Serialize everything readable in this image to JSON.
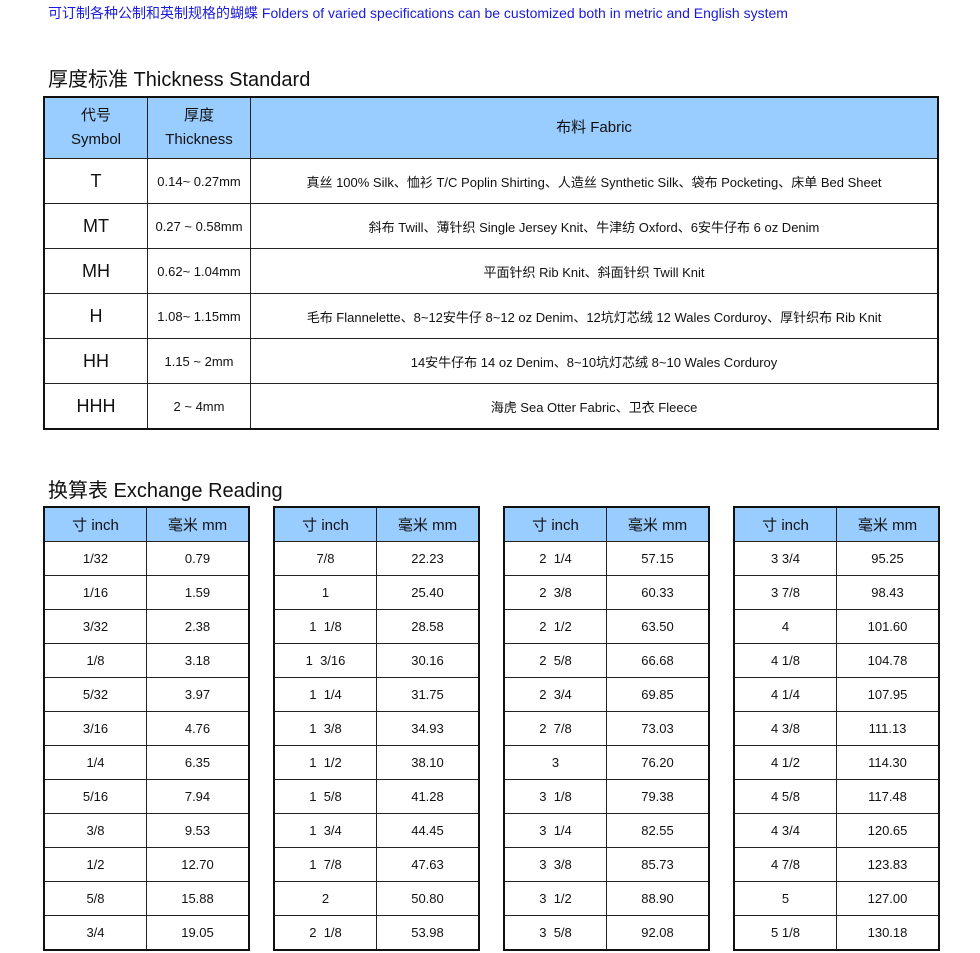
{
  "notice": "可订制各种公制和英制规格的蝴蝶 Folders of varied specifications can be customized both in metric and English system",
  "thickness": {
    "title": "厚度标准 Thickness Standard",
    "headers": {
      "symbol_cn": "代号",
      "symbol_en": "Symbol",
      "thick_cn": "厚度",
      "thick_en": "Thickness",
      "fabric": "布料 Fabric"
    },
    "rows": [
      {
        "symbol": "T",
        "thickness": "0.14~ 0.27mm",
        "fabric": "真丝 100% Silk、恤衫 T/C Poplin Shirting、人造丝 Synthetic Silk、袋布 Pocketing、床单 Bed Sheet"
      },
      {
        "symbol": "MT",
        "thickness": "0.27 ~ 0.58mm",
        "fabric": "斜布 Twill、薄针织 Single Jersey Knit、牛津纺 Oxford、6安牛仔布 6 oz Denim"
      },
      {
        "symbol": "MH",
        "thickness": "0.62~ 1.04mm",
        "fabric": "平面针织 Rib Knit、斜面针织 Twill Knit"
      },
      {
        "symbol": "H",
        "thickness": "1.08~ 1.15mm",
        "fabric": "毛布 Flannelette、8~12安牛仔 8~12 oz Denim、12坑灯芯绒 12 Wales Corduroy、厚针织布 Rib Knit"
      },
      {
        "symbol": "HH",
        "thickness": "1.15 ~ 2mm",
        "fabric": "14安牛仔布 14 oz Denim、8~10坑灯芯绒 8~10 Wales Corduroy"
      },
      {
        "symbol": "HHH",
        "thickness": "2 ~ 4mm",
        "fabric": "海虎 Sea Otter Fabric、卫衣 Fleece"
      }
    ]
  },
  "exchange": {
    "title": "换算表 Exchange Reading",
    "col_inch": "寸 inch",
    "col_mm": "毫米 mm",
    "tables": [
      [
        [
          "1/32",
          "0.79"
        ],
        [
          "1/16",
          "1.59"
        ],
        [
          "3/32",
          "2.38"
        ],
        [
          "1/8",
          "3.18"
        ],
        [
          "5/32",
          "3.97"
        ],
        [
          "3/16",
          "4.76"
        ],
        [
          "1/4",
          "6.35"
        ],
        [
          "5/16",
          "7.94"
        ],
        [
          "3/8",
          "9.53"
        ],
        [
          "1/2",
          "12.70"
        ],
        [
          "5/8",
          "15.88"
        ],
        [
          "3/4",
          "19.05"
        ]
      ],
      [
        [
          "7/8",
          "22.23"
        ],
        [
          "1",
          "25.40"
        ],
        [
          "1  1/8",
          "28.58"
        ],
        [
          "1  3/16",
          "30.16"
        ],
        [
          "1  1/4",
          "31.75"
        ],
        [
          "1  3/8",
          "34.93"
        ],
        [
          "1  1/2",
          "38.10"
        ],
        [
          "1  5/8",
          "41.28"
        ],
        [
          "1  3/4",
          "44.45"
        ],
        [
          "1  7/8",
          "47.63"
        ],
        [
          "2",
          "50.80"
        ],
        [
          "2  1/8",
          "53.98"
        ]
      ],
      [
        [
          "2  1/4",
          "57.15"
        ],
        [
          "2  3/8",
          "60.33"
        ],
        [
          "2  1/2",
          "63.50"
        ],
        [
          "2  5/8",
          "66.68"
        ],
        [
          "2  3/4",
          "69.85"
        ],
        [
          "2  7/8",
          "73.03"
        ],
        [
          "3",
          "76.20"
        ],
        [
          "3  1/8",
          "79.38"
        ],
        [
          "3  1/4",
          "82.55"
        ],
        [
          "3  3/8",
          "85.73"
        ],
        [
          "3  1/2",
          "88.90"
        ],
        [
          "3  5/8",
          "92.08"
        ]
      ],
      [
        [
          "3 3/4",
          "95.25"
        ],
        [
          "3 7/8",
          "98.43"
        ],
        [
          "4",
          "101.60"
        ],
        [
          "4 1/8",
          "104.78"
        ],
        [
          "4 1/4",
          "107.95"
        ],
        [
          "4 3/8",
          "111.13"
        ],
        [
          "4 1/2",
          "114.30"
        ],
        [
          "4 5/8",
          "117.48"
        ],
        [
          "4 3/4",
          "120.65"
        ],
        [
          "4 7/8",
          "123.83"
        ],
        [
          "5",
          "127.00"
        ],
        [
          "5 1/8",
          "130.18"
        ]
      ]
    ]
  }
}
